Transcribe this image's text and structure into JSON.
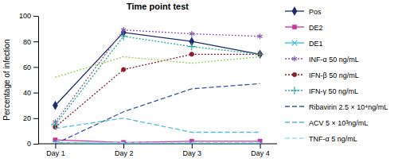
{
  "chart_data": {
    "type": "line",
    "title": "Time point test",
    "y_label": "Percentage of infection",
    "categories": [
      "Day 1",
      "Day 2",
      "Day 3",
      "Day 4"
    ],
    "ylim": [
      0,
      100
    ],
    "yticks": [
      0,
      20,
      40,
      60,
      80,
      100
    ],
    "legend": "right",
    "series": [
      {
        "name": "Pos",
        "color": "#1f2a6e",
        "marker": "diamond",
        "line_style": "solid",
        "values": [
          30,
          87,
          80,
          70
        ]
      },
      {
        "name": "DE2",
        "color": "#cc3399",
        "marker": "square",
        "line_style": "solid",
        "values": [
          3,
          1,
          2,
          2
        ]
      },
      {
        "name": "DE1",
        "color": "#33bbdd",
        "marker": "x",
        "line_style": "solid",
        "values": [
          1,
          0,
          0,
          0
        ]
      },
      {
        "name": "INF-α 50 ng/mL",
        "color": "#8a5aab",
        "marker": "star",
        "line_style": "dotted",
        "values": [
          17,
          89,
          86,
          84
        ]
      },
      {
        "name": "IFN-β 50 ng/mL",
        "color": "#8b1a2b",
        "marker": "circle",
        "line_style": "dotted",
        "values": [
          13,
          58,
          70,
          70
        ]
      },
      {
        "name": "IFN-γ 50 ng/mL",
        "color": "#2aa89a",
        "marker": "plus",
        "line_style": "dotted",
        "values": [
          15,
          84,
          76,
          70
        ]
      },
      {
        "color": "#9acd55",
        "marker": "none",
        "line_style": "dotted",
        "values": [
          52,
          68,
          63,
          68
        ]
      },
      {
        "name": "Ribavirin 2.5 × 10⁴ng/mL",
        "color": "#3a55a8",
        "marker": "none",
        "line_style": "dashed",
        "values": [
          0,
          25,
          43,
          47
        ]
      },
      {
        "name": "ACV 5 × 10³ng/mL",
        "color": "#55bbdd",
        "marker": "none",
        "line_style": "dashed",
        "values": [
          12,
          20,
          9,
          9
        ]
      },
      {
        "name": "TNF-α 5 ng/mL",
        "color": "#a5dcea",
        "marker": "none",
        "line_style": "dashed",
        "values": [
          1,
          1,
          1,
          1
        ]
      }
    ]
  }
}
